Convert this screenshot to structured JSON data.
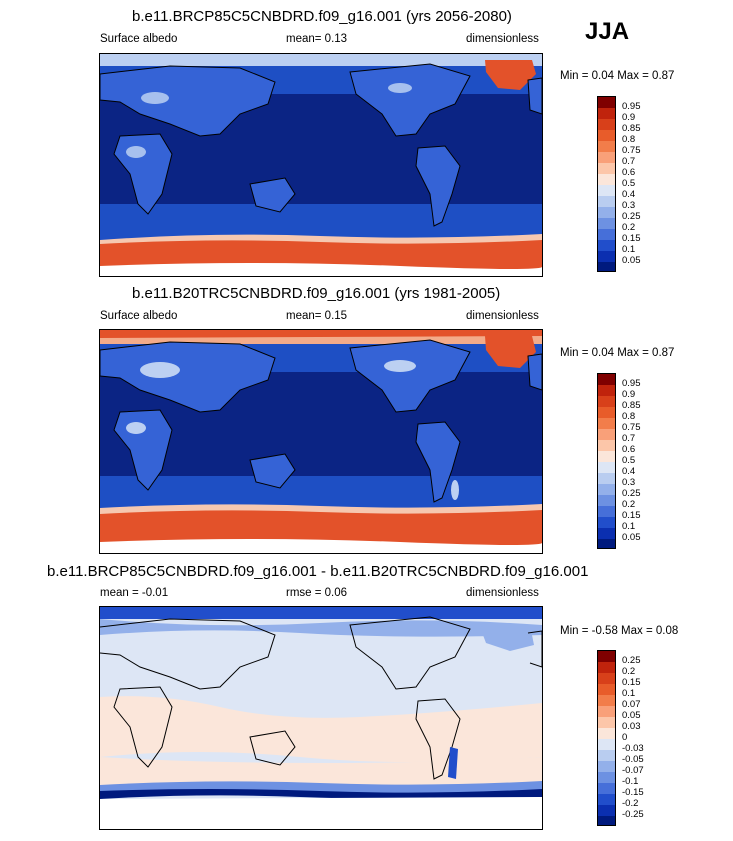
{
  "season": "JJA",
  "panels": [
    {
      "title": "b.e11.BRCP85C5CNBDRD.f09_g16.001 (yrs 2056-2080)",
      "left": "Surface albedo",
      "mid": "mean=   0.13",
      "right": "dimensionless",
      "minmax": "Min =   0.04 Max =   0.87",
      "colorbar": {
        "labels": [
          "0.95",
          "0.9",
          "0.85",
          "0.8",
          "0.75",
          "0.7",
          "0.6",
          "0.5",
          "0.4",
          "0.3",
          "0.25",
          "0.2",
          "0.15",
          "0.1",
          "0.05"
        ],
        "colors": [
          "#7f0000",
          "#c0230c",
          "#d8401a",
          "#e85c2a",
          "#f27d4a",
          "#f9a079",
          "#fcc6a9",
          "#fbe6da",
          "#dde6f5",
          "#b9cdf0",
          "#93b0ea",
          "#6d91e2",
          "#466fd9",
          "#214ecb",
          "#0b2fb0",
          "#001a7e"
        ]
      }
    },
    {
      "title": "b.e11.B20TRC5CNBDRD.f09_g16.001 (yrs 1981-2005)",
      "left": "Surface albedo",
      "mid": "mean=   0.15",
      "right": "dimensionless",
      "minmax": "Min =   0.04 Max =   0.87",
      "colorbar": {
        "labels": [
          "0.95",
          "0.9",
          "0.85",
          "0.8",
          "0.75",
          "0.7",
          "0.6",
          "0.5",
          "0.4",
          "0.3",
          "0.25",
          "0.2",
          "0.15",
          "0.1",
          "0.05"
        ],
        "colors": [
          "#7f0000",
          "#c0230c",
          "#d8401a",
          "#e85c2a",
          "#f27d4a",
          "#f9a079",
          "#fcc6a9",
          "#fbe6da",
          "#dde6f5",
          "#b9cdf0",
          "#93b0ea",
          "#6d91e2",
          "#466fd9",
          "#214ecb",
          "#0b2fb0",
          "#001a7e"
        ]
      }
    },
    {
      "title": "b.e11.BRCP85C5CNBDRD.f09_g16.001 - b.e11.B20TRC5CNBDRD.f09_g16.001",
      "left": "mean =   -0.01",
      "mid": "rmse =   0.06",
      "right": "dimensionless",
      "minmax": "Min =  -0.58 Max =   0.08",
      "colorbar": {
        "labels": [
          "0.25",
          "0.2",
          "0.15",
          "0.1",
          "0.07",
          "0.05",
          "0.03",
          "0",
          "-0.03",
          "-0.05",
          "-0.07",
          "-0.1",
          "-0.15",
          "-0.2",
          "-0.25"
        ],
        "colors": [
          "#7f0000",
          "#c0230c",
          "#d8401a",
          "#e85c2a",
          "#f27d4a",
          "#f9a079",
          "#fcc6a9",
          "#fbe6da",
          "#dde6f5",
          "#b9cdf0",
          "#93b0ea",
          "#6d91e2",
          "#466fd9",
          "#214ecb",
          "#0b2fb0",
          "#001a7e"
        ]
      }
    }
  ]
}
